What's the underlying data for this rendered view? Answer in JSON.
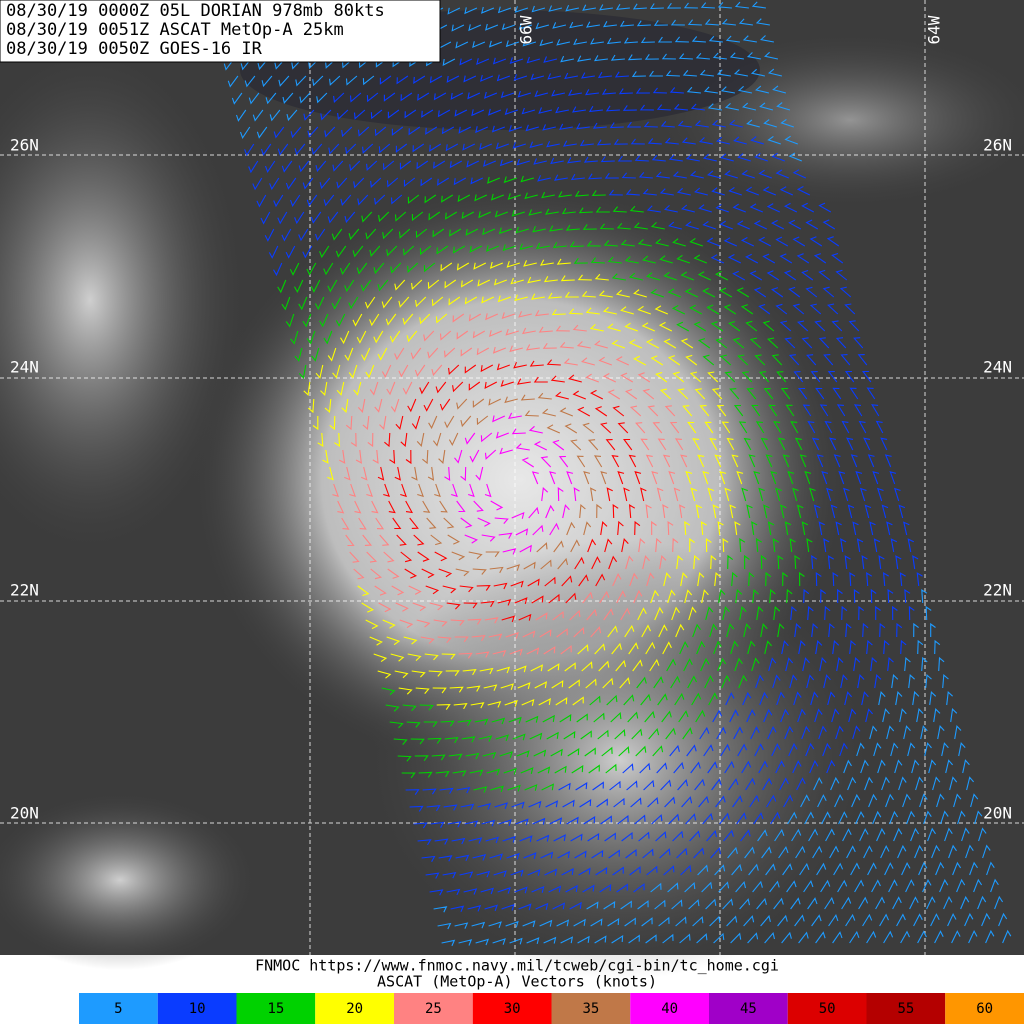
{
  "header": {
    "lines": [
      "08/30/19 0000Z  05L DORIAN 978mb 80kts",
      "08/30/19 0051Z  ASCAT MetOp-A 25km",
      "08/30/19 0050Z  GOES-16 IR"
    ]
  },
  "map": {
    "lat_labels": [
      "26N",
      "24N",
      "22N",
      "20N"
    ],
    "lon_labels": [
      "66W",
      "64W"
    ]
  },
  "footer": {
    "source": "FNMOC https://www.fnmoc.navy.mil/tcweb/cgi-bin/tc_home.cgi",
    "caption": "ASCAT (MetOp-A) Vectors (knots)"
  },
  "legend": {
    "items": [
      {
        "label": "5",
        "color": "#1e9bff"
      },
      {
        "label": "10",
        "color": "#0a3cff"
      },
      {
        "label": "15",
        "color": "#00d200"
      },
      {
        "label": "20",
        "color": "#ffff00"
      },
      {
        "label": "25",
        "color": "#ff8282"
      },
      {
        "label": "30",
        "color": "#ff0000"
      },
      {
        "label": "35",
        "color": "#c07848"
      },
      {
        "label": "40",
        "color": "#ff00ff"
      },
      {
        "label": "45",
        "color": "#a000c8"
      },
      {
        "label": "50",
        "color": "#dc0000"
      },
      {
        "label": "55",
        "color": "#b40000"
      },
      {
        "label": "60",
        "color": "#ff9600"
      }
    ]
  }
}
